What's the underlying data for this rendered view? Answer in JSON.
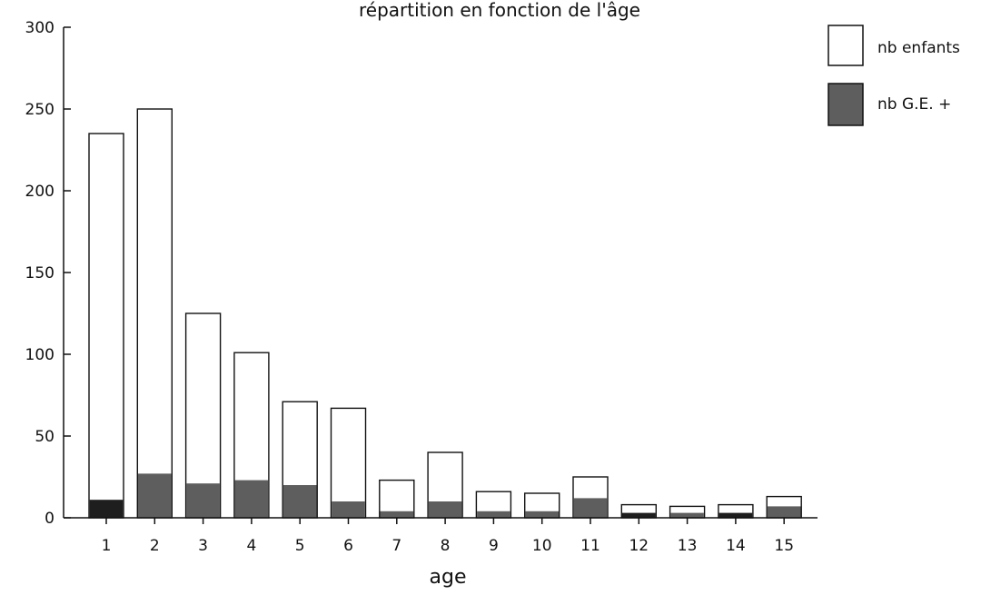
{
  "colors": {
    "total_fill": "#ffffff",
    "positive_fill": "#5e5e5e",
    "positive_dark_fill": "#1e1e1e",
    "stroke": "#111111"
  },
  "chart_data": {
    "type": "bar",
    "title": "répartition en fonction de l'âge",
    "xlabel": "age",
    "ylabel": "",
    "ylim": [
      0,
      300
    ],
    "yticks": [
      0,
      50,
      100,
      150,
      200,
      250,
      300
    ],
    "categories": [
      "1",
      "2",
      "3",
      "4",
      "5",
      "6",
      "7",
      "8",
      "9",
      "10",
      "11",
      "12",
      "13",
      "14",
      "15"
    ],
    "series": [
      {
        "name": "nb enfants",
        "values": [
          235,
          250,
          125,
          101,
          71,
          67,
          23,
          40,
          16,
          15,
          25,
          8,
          7,
          8,
          13
        ]
      },
      {
        "name": "nb G.E. +",
        "values": [
          11,
          27,
          21,
          23,
          20,
          10,
          4,
          10,
          4,
          4,
          12,
          3,
          3,
          3,
          7
        ]
      }
    ],
    "bar_layout": "overlaid",
    "legend": "top-right",
    "grid": false
  }
}
